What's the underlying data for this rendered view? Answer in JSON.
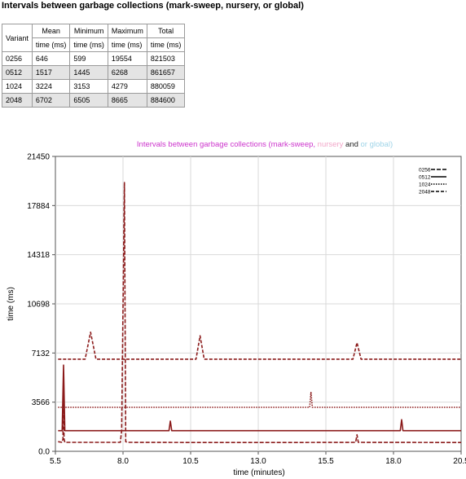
{
  "page": {
    "title": "Intervals between garbage collections (mark-sweep, nursery, or global)"
  },
  "table": {
    "variant_header": "Variant",
    "columns": [
      {
        "name": "Mean",
        "unit": "time (ms)"
      },
      {
        "name": "Minimum",
        "unit": "time (ms)"
      },
      {
        "name": "Maximum",
        "unit": "time (ms)"
      },
      {
        "name": "Total",
        "unit": "time (ms)"
      }
    ],
    "rows": [
      {
        "variant": "0256",
        "mean": "646",
        "min": "599",
        "max": "19554",
        "total": "821503"
      },
      {
        "variant": "0512",
        "mean": "1517",
        "min": "1445",
        "max": "6268",
        "total": "861657"
      },
      {
        "variant": "1024",
        "mean": "3224",
        "min": "3153",
        "max": "4279",
        "total": "880059"
      },
      {
        "variant": "2048",
        "mean": "6702",
        "min": "6505",
        "max": "8665",
        "total": "884600"
      }
    ]
  },
  "chart_data": {
    "type": "line",
    "title_parts": [
      {
        "text": "Intervals between garbage collections (mark-sweep, ",
        "color": "#cc33cc"
      },
      {
        "text": "nursery",
        "color": "#f2a6c8"
      },
      {
        "text": " and ",
        "color": "#222222"
      },
      {
        "text": "or global)",
        "color": "#9fd4e8"
      }
    ],
    "xlabel": "time (minutes)",
    "ylabel": "time (ms)",
    "xlim": [
      5.5,
      20.5
    ],
    "ylim": [
      0,
      21450
    ],
    "xticks": [
      "5.5",
      "8.0",
      "10.5",
      "13.0",
      "15.5",
      "18.0",
      "20.5"
    ],
    "yticks": [
      "0.0",
      "3566",
      "7132",
      "10698",
      "14318",
      "17884",
      "21450"
    ],
    "grid": true,
    "legend_position": "top-right",
    "line_color": "#8b1a1a",
    "series": [
      {
        "name": "0256",
        "dash": "5,2",
        "points": [
          [
            5.6,
            700
          ],
          [
            5.75,
            650
          ],
          [
            5.78,
            900
          ],
          [
            5.8,
            5000
          ],
          [
            5.82,
            900
          ],
          [
            5.85,
            650
          ],
          [
            7.9,
            650
          ],
          [
            7.95,
            1500
          ],
          [
            8.05,
            19554
          ],
          [
            8.1,
            700
          ],
          [
            8.2,
            650
          ],
          [
            11.0,
            640
          ],
          [
            14.0,
            640
          ],
          [
            16.6,
            650
          ],
          [
            16.65,
            1200
          ],
          [
            16.7,
            650
          ],
          [
            20.5,
            640
          ]
        ]
      },
      {
        "name": "0512",
        "dash": "",
        "points": [
          [
            5.6,
            1500
          ],
          [
            5.75,
            1500
          ],
          [
            5.8,
            6268
          ],
          [
            5.85,
            1500
          ],
          [
            9.7,
            1500
          ],
          [
            9.75,
            2200
          ],
          [
            9.8,
            1500
          ],
          [
            18.25,
            1500
          ],
          [
            18.3,
            2300
          ],
          [
            18.35,
            1500
          ],
          [
            20.5,
            1500
          ]
        ]
      },
      {
        "name": "1024",
        "dash": "1.5,1.5",
        "points": [
          [
            5.6,
            3200
          ],
          [
            14.9,
            3200
          ],
          [
            14.95,
            4279
          ],
          [
            15.0,
            3200
          ],
          [
            20.5,
            3200
          ]
        ]
      },
      {
        "name": "2048",
        "dash": "4,2",
        "points": [
          [
            5.6,
            6700
          ],
          [
            6.6,
            6700
          ],
          [
            6.8,
            8665
          ],
          [
            7.0,
            6700
          ],
          [
            10.7,
            6700
          ],
          [
            10.85,
            8400
          ],
          [
            11.0,
            6700
          ],
          [
            16.5,
            6700
          ],
          [
            16.65,
            7900
          ],
          [
            16.8,
            6700
          ],
          [
            20.5,
            6700
          ]
        ]
      }
    ]
  }
}
